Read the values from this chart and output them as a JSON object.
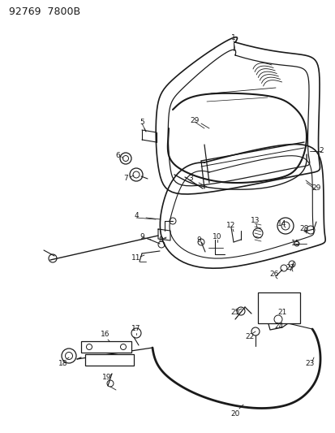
{
  "title": "92769  7800B",
  "bg_color": "#ffffff",
  "lc": "#1a1a1a",
  "figsize": [
    4.14,
    5.33
  ],
  "dpi": 100
}
